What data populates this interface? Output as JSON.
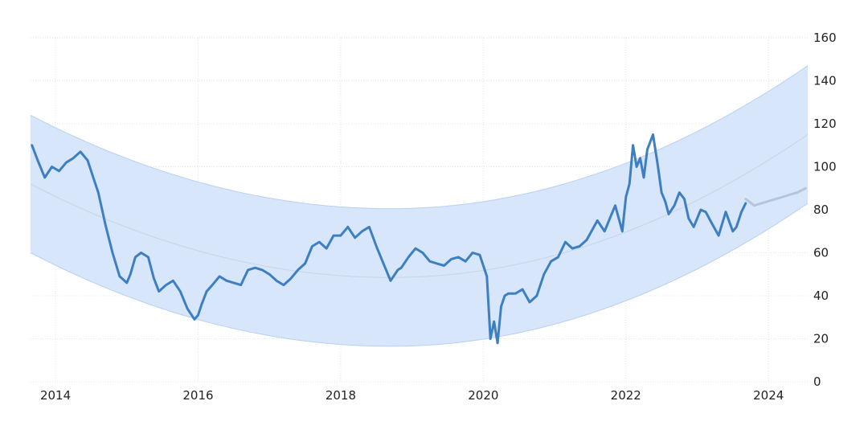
{
  "chart_data": {
    "type": "line",
    "title": "",
    "xlabel": "",
    "ylabel": "",
    "x_range": [
      2013.65,
      2024.55
    ],
    "ylim": [
      0,
      160
    ],
    "x_ticks": [
      2014,
      2016,
      2018,
      2020,
      2022,
      2024
    ],
    "y_ticks": [
      0,
      20,
      40,
      60,
      80,
      100,
      120,
      140,
      160
    ],
    "y_axis_side": "right",
    "grid": true,
    "legend": "none",
    "colors": {
      "history": "#3d7fc1",
      "forecast": "#b3c5d8",
      "band_fill": "#d7e6fa",
      "band_edge": "#b8d0f0",
      "trend": "#c8d4e2"
    },
    "trend_band": {
      "x": [
        2013.65,
        2024.55
      ],
      "center": {
        "x_min": 2018.7,
        "y_min": 48.5,
        "y_start": 92,
        "y_end": 115
      },
      "upper": {
        "x_min": 2018.7,
        "y_min": 80.5,
        "y_start": 124,
        "y_end": 147
      },
      "lower": {
        "x_min": 2018.7,
        "y_min": 16.5,
        "y_start": 60,
        "y_end": 83
      }
    },
    "series": [
      {
        "role": "history",
        "x": [
          2013.67,
          2013.75,
          2013.85,
          2013.95,
          2014.05,
          2014.15,
          2014.25,
          2014.35,
          2014.45,
          2014.55,
          2014.6,
          2014.7,
          2014.8,
          2014.9,
          2015.0,
          2015.05,
          2015.12,
          2015.2,
          2015.3,
          2015.38,
          2015.45,
          2015.55,
          2015.65,
          2015.75,
          2015.85,
          2015.95,
          2016.0,
          2016.05,
          2016.12,
          2016.2,
          2016.3,
          2016.4,
          2016.5,
          2016.6,
          2016.7,
          2016.8,
          2016.9,
          2017.0,
          2017.1,
          2017.2,
          2017.3,
          2017.4,
          2017.5,
          2017.6,
          2017.7,
          2017.8,
          2017.9,
          2018.0,
          2018.1,
          2018.2,
          2018.3,
          2018.4,
          2018.5,
          2018.6,
          2018.7,
          2018.8,
          2018.85,
          2018.95,
          2019.05,
          2019.15,
          2019.25,
          2019.35,
          2019.45,
          2019.55,
          2019.65,
          2019.75,
          2019.85,
          2019.95,
          2020.05,
          2020.1,
          2020.15,
          2020.2,
          2020.25,
          2020.3,
          2020.35,
          2020.45,
          2020.55,
          2020.65,
          2020.75,
          2020.85,
          2020.95,
          2021.05,
          2021.15,
          2021.25,
          2021.35,
          2021.45,
          2021.55,
          2021.6,
          2021.7,
          2021.8,
          2021.85,
          2021.95,
          2022.0,
          2022.05,
          2022.1,
          2022.15,
          2022.2,
          2022.25,
          2022.3,
          2022.38,
          2022.45,
          2022.5,
          2022.55,
          2022.6,
          2022.68,
          2022.75,
          2022.82,
          2022.88,
          2022.95,
          2023.05,
          2023.12,
          2023.2,
          2023.3,
          2023.4,
          2023.5,
          2023.55,
          2023.62,
          2023.68
        ],
        "y": [
          110,
          103,
          95,
          100,
          98,
          102,
          104,
          107,
          103,
          93,
          88,
          73,
          60,
          49,
          46,
          50,
          58,
          60,
          58,
          48,
          42,
          45,
          47,
          42,
          34,
          29,
          31,
          36,
          42,
          45,
          49,
          47,
          46,
          45,
          52,
          53,
          52,
          50,
          47,
          45,
          48,
          52,
          55,
          63,
          65,
          62,
          68,
          68,
          72,
          67,
          70,
          72,
          63,
          55,
          47,
          52,
          53,
          58,
          62,
          60,
          56,
          55,
          54,
          57,
          58,
          56,
          60,
          59,
          49,
          20,
          28,
          18,
          35,
          40,
          41,
          41,
          43,
          37,
          40,
          50,
          56,
          58,
          65,
          62,
          63,
          66,
          72,
          75,
          70,
          78,
          82,
          70,
          86,
          92,
          110,
          100,
          104,
          95,
          108,
          115,
          100,
          88,
          84,
          78,
          82,
          88,
          85,
          76,
          72,
          80,
          79,
          74,
          68,
          79,
          70,
          72,
          79,
          83
        ]
      },
      {
        "role": "forecast",
        "x": [
          2023.68,
          2023.8,
          2024.0,
          2024.2,
          2024.4,
          2024.52
        ],
        "y": [
          85,
          82,
          84,
          86,
          88,
          90
        ]
      }
    ]
  }
}
